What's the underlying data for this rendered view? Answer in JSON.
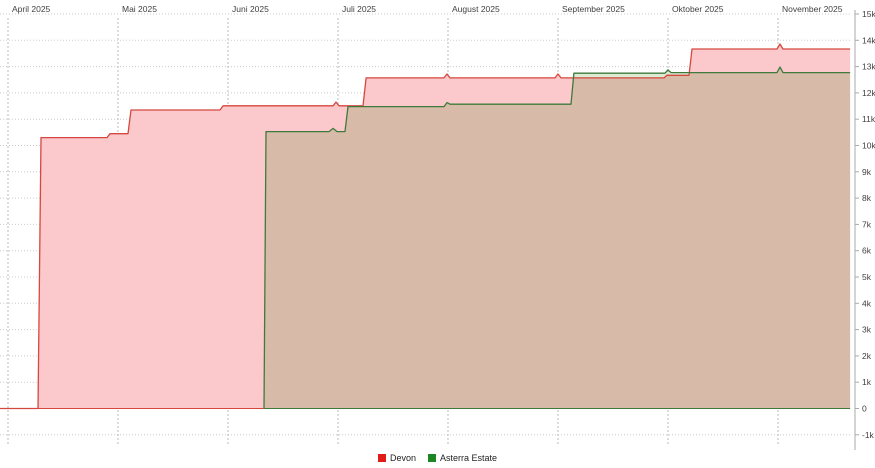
{
  "chart_data": {
    "type": "area",
    "title": "",
    "grid": true,
    "x_axis": {
      "position": "top",
      "labels": [
        "April 2025",
        "Mai 2025",
        "Juni 2025",
        "Juli 2025",
        "August 2025",
        "September 2025",
        "Oktober 2025",
        "November 2025"
      ]
    },
    "y_axis": {
      "position": "right",
      "min": -1000,
      "max": 15000,
      "step": 1000,
      "tick_labels": [
        "-1k",
        "0",
        "1k",
        "2k",
        "3k",
        "4k",
        "5k",
        "6k",
        "7k",
        "8k",
        "9k",
        "10k",
        "11k",
        "12k",
        "13k",
        "14k",
        "15k"
      ]
    },
    "legend_position": "bottom",
    "series": [
      {
        "name": "Devon",
        "line_color": "#d6473d",
        "fill_color": "#fbc9cc",
        "legend_color": "#e11b17",
        "blend": "normal",
        "points": [
          [
            -0.073,
            0
          ],
          [
            0.273,
            0
          ],
          [
            0.3,
            10300
          ],
          [
            0.9,
            10300
          ],
          [
            0.927,
            10450
          ],
          [
            1.091,
            10450
          ],
          [
            1.118,
            11350
          ],
          [
            1.927,
            11350
          ],
          [
            1.955,
            11510
          ],
          [
            2.955,
            11510
          ],
          [
            2.982,
            11650
          ],
          [
            3.009,
            11510
          ],
          [
            3.227,
            11510
          ],
          [
            3.255,
            12570
          ],
          [
            3.964,
            12570
          ],
          [
            3.991,
            12720
          ],
          [
            4.018,
            12570
          ],
          [
            4.973,
            12570
          ],
          [
            5.0,
            12720
          ],
          [
            5.027,
            12570
          ],
          [
            5.964,
            12570
          ],
          [
            5.991,
            12670
          ],
          [
            6.191,
            12670
          ],
          [
            6.218,
            13670
          ],
          [
            6.991,
            13670
          ],
          [
            7.018,
            13860
          ],
          [
            7.045,
            13670
          ],
          [
            7.655,
            13670
          ]
        ]
      },
      {
        "name": "Asterra Estate",
        "line_color": "#3e7a3b",
        "fill_color": "#dcecd4",
        "legend_color": "#1d8622",
        "blend": "multiply",
        "points": [
          [
            2.327,
            0
          ],
          [
            2.345,
            10530
          ],
          [
            2.918,
            10530
          ],
          [
            2.955,
            10650
          ],
          [
            2.991,
            10530
          ],
          [
            3.064,
            10530
          ],
          [
            3.091,
            11480
          ],
          [
            3.964,
            11480
          ],
          [
            3.991,
            11630
          ],
          [
            4.018,
            11570
          ],
          [
            5.118,
            11570
          ],
          [
            5.145,
            12750
          ],
          [
            5.973,
            12750
          ],
          [
            6.0,
            12880
          ],
          [
            6.027,
            12770
          ],
          [
            6.991,
            12770
          ],
          [
            7.018,
            12980
          ],
          [
            7.045,
            12770
          ],
          [
            7.655,
            12770
          ]
        ]
      }
    ]
  },
  "legend": {
    "items": [
      {
        "label": "Devon"
      },
      {
        "label": "Asterra Estate"
      }
    ]
  }
}
